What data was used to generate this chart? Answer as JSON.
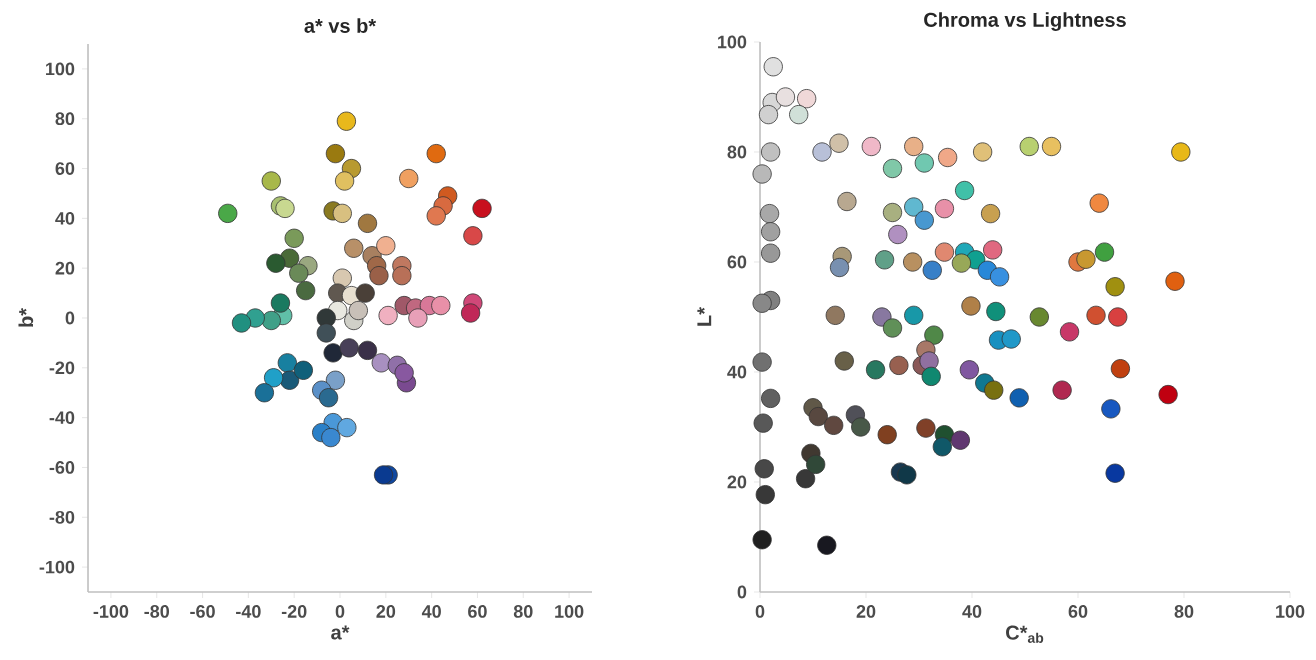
{
  "chart_data": [
    {
      "type": "scatter",
      "title": "a* vs b*",
      "xlabel": "a*",
      "ylabel": "b*",
      "marker": "circle",
      "xlim": [
        -110,
        110
      ],
      "ylim": [
        -110,
        110
      ],
      "xticks": [
        -100,
        -80,
        -60,
        -40,
        -20,
        0,
        20,
        40,
        60,
        80,
        100
      ],
      "yticks": [
        -100,
        -80,
        -60,
        -40,
        -20,
        0,
        20,
        40,
        60,
        80,
        100
      ],
      "x": [
        2.8,
        42,
        -2,
        5,
        2,
        30,
        -30,
        47,
        45,
        42,
        62,
        -49,
        -26,
        -24,
        -3,
        1,
        12,
        58,
        -20,
        -22,
        -28,
        -14,
        -18,
        -15,
        6,
        14,
        20,
        16,
        27,
        27,
        17,
        1,
        -1,
        5,
        11,
        28,
        33,
        39,
        44,
        58,
        57,
        21,
        34,
        -25,
        -30,
        -37,
        -43,
        -26,
        -1,
        -6,
        -6,
        6,
        8,
        -3,
        4,
        12,
        18,
        25,
        29,
        28,
        -23,
        -22,
        -16,
        -29,
        -33,
        -2,
        -8,
        -5,
        -3,
        3,
        -8,
        -4,
        21,
        19
      ],
      "values": [
        79,
        66,
        66,
        60,
        55,
        56,
        55,
        49,
        45,
        41,
        44,
        42,
        45,
        44,
        43,
        42,
        38,
        33,
        32,
        24,
        22,
        21,
        18,
        11,
        28,
        25,
        29,
        21,
        21,
        17,
        17,
        16,
        10,
        9,
        10,
        5,
        4,
        5,
        5,
        6,
        2,
        1,
        0,
        1,
        -1,
        0,
        -2,
        6,
        3,
        0,
        -6,
        -1,
        3,
        -14,
        -12,
        -13,
        -18,
        -19,
        -26,
        -22,
        -18,
        -25,
        -21,
        -24,
        -30,
        -25,
        -29,
        -32,
        -42,
        -44,
        -46,
        -48,
        -63,
        -63
      ],
      "colors": [
        "#e8b81c",
        "#e06a10",
        "#9a7a10",
        "#b89a30",
        "#e0c060",
        "#f0a060",
        "#a8b84a",
        "#d05a20",
        "#d86a40",
        "#e07850",
        "#c8101e",
        "#4aa848",
        "#a8c070",
        "#c8d890",
        "#8a7a20",
        "#d8c080",
        "#a07840",
        "#d84848",
        "#7a9a5a",
        "#4a6a38",
        "#2a5a30",
        "#9aa880",
        "#6a8a58",
        "#4a6a40",
        "#b89068",
        "#a88060",
        "#f0b090",
        "#a06848",
        "#c07860",
        "#b87058",
        "#9a6048",
        "#d8c8b0",
        "#605850",
        "#e8e0d0",
        "#4a4038",
        "#a05868",
        "#c06880",
        "#d87898",
        "#e890a8",
        "#d04878",
        "#c02858",
        "#f0b0c0",
        "#e8a0b8",
        "#60c0a8",
        "#40a088",
        "#30a090",
        "#209080",
        "#1a7a60",
        "#e8e8e0",
        "#303838",
        "#405058",
        "#d0d0c8",
        "#c8c0b8",
        "#202838",
        "#484058",
        "#3a3048",
        "#a890c0",
        "#9070a8",
        "#7a4a90",
        "#8858a0",
        "#1880a0",
        "#1a5a78",
        "#10607a",
        "#20a0c8",
        "#1a7098",
        "#7aa0c8",
        "#5a90c8",
        "#2a6a90",
        "#4a98d8",
        "#60a8e0",
        "#2a80c8",
        "#3a88d0",
        "#1048a0",
        "#0a3a90"
      ]
    },
    {
      "type": "scatter",
      "title": "Chroma vs Lightness",
      "xlabel": "C*$_{ab}$",
      "ylabel": "L*",
      "marker": "circle",
      "xlim": [
        0,
        100
      ],
      "ylim": [
        0,
        100
      ],
      "xticks": [
        0,
        20,
        40,
        60,
        80,
        100
      ],
      "yticks": [
        0,
        20,
        40,
        60,
        80,
        100
      ],
      "x": [
        2.5,
        2.3,
        4.8,
        8.8,
        1.6,
        7.3,
        2,
        0.4,
        11.7,
        14.9,
        21,
        25,
        29,
        31,
        35.4,
        42,
        50.8,
        55,
        79.4,
        1.8,
        2,
        2,
        16.4,
        25,
        29,
        31,
        34.8,
        38.6,
        43.5,
        64,
        26,
        23.5,
        15.5,
        15,
        28.8,
        32.5,
        34.8,
        38.6,
        40.7,
        38,
        42.9,
        45.2,
        43.9,
        60,
        61.5,
        65,
        67,
        78.3,
        2,
        0.4,
        14.2,
        23,
        25,
        29,
        39.8,
        44.5,
        52.7,
        63.4,
        67.5,
        32.8,
        45,
        47.4,
        58.4,
        31.3,
        0.4,
        15.9,
        21.8,
        26.2,
        30.6,
        31.9,
        32.3,
        39.5,
        42.4,
        44.1,
        48.9,
        57,
        66.2,
        68,
        77,
        2,
        0.6,
        10,
        11,
        13.9,
        18,
        19,
        24,
        31.3,
        34.8,
        37.8,
        34.4,
        9.6,
        8.6,
        10.5,
        0.8,
        26.5,
        27.7,
        67,
        1,
        0.4,
        12.6
      ],
      "values": [
        95.5,
        89,
        90,
        89.7,
        86.8,
        86.8,
        80,
        76,
        80,
        81.6,
        81,
        77,
        81,
        78,
        79,
        80,
        81,
        81,
        80,
        68.8,
        65.5,
        61.6,
        71,
        69,
        70,
        67.6,
        69.7,
        73,
        68.8,
        70.7,
        65,
        60.4,
        61,
        59,
        60,
        58.5,
        61.8,
        61.8,
        60.4,
        59.8,
        58.5,
        57.3,
        62.2,
        60,
        60.5,
        61.8,
        55.5,
        56.5,
        53,
        52.5,
        50.3,
        50,
        48,
        50.3,
        52,
        51,
        50,
        50.3,
        50,
        46.7,
        45.8,
        46,
        47.3,
        44,
        41.8,
        42,
        40.4,
        41.2,
        41.2,
        42,
        39.2,
        40.4,
        38,
        36.7,
        35.3,
        36.7,
        33.3,
        40.6,
        35.9,
        35.2,
        30.7,
        33.5,
        31.9,
        30.3,
        32.2,
        30,
        28.6,
        29.8,
        28.6,
        27.6,
        26.4,
        25.2,
        20.6,
        23.2,
        22.4,
        21.8,
        21.3,
        21.6,
        17.7,
        9.5,
        8.5
      ],
      "colors": [
        "#e0e0e0",
        "#d8d8d8",
        "#e8e0e0",
        "#f0d8d8",
        "#d0d0d0",
        "#d0e0d8",
        "#c0c0c0",
        "#b8b8b8",
        "#b8c0d8",
        "#d0c0a8",
        "#f0b8c8",
        "#80c8a8",
        "#e8b088",
        "#70c8b0",
        "#f0a888",
        "#e0c078",
        "#b8d070",
        "#e8c060",
        "#e8b818",
        "#a8a8a8",
        "#a0a0a0",
        "#989898",
        "#b8a890",
        "#a8b080",
        "#60b8d0",
        "#4898d0",
        "#e890a8",
        "#40c0a8",
        "#c8a050",
        "#f08840",
        "#b090c0",
        "#60a088",
        "#a89878",
        "#7890b0",
        "#b89060",
        "#3880c8",
        "#e08870",
        "#20a8b8",
        "#10a090",
        "#98a858",
        "#2888d8",
        "#3890e0",
        "#e06880",
        "#e07840",
        "#c89830",
        "#40a040",
        "#a09010",
        "#e06010",
        "#808080",
        "#888888",
        "#907860",
        "#8878a0",
        "#609058",
        "#1898a8",
        "#b08048",
        "#10907a",
        "#688830",
        "#d05030",
        "#d84040",
        "#508848",
        "#1890c0",
        "#2098c8",
        "#c83868",
        "#a87868",
        "#707070",
        "#686048",
        "#287860",
        "#986050",
        "#8a5858",
        "#9070a0",
        "#108870",
        "#8058a0",
        "#107890",
        "#787010",
        "#1060b0",
        "#b02850",
        "#1858c0",
        "#c04010",
        "#c00010",
        "#606060",
        "#585858",
        "#605848",
        "#584840",
        "#604840",
        "#505058",
        "#485848",
        "#804020",
        "#804028",
        "#205030",
        "#603870",
        "#105868",
        "#403830",
        "#383838",
        "#304838",
        "#484848",
        "#183850",
        "#103848",
        "#0838a0",
        "#383838",
        "#202020",
        "#181820"
      ]
    }
  ]
}
